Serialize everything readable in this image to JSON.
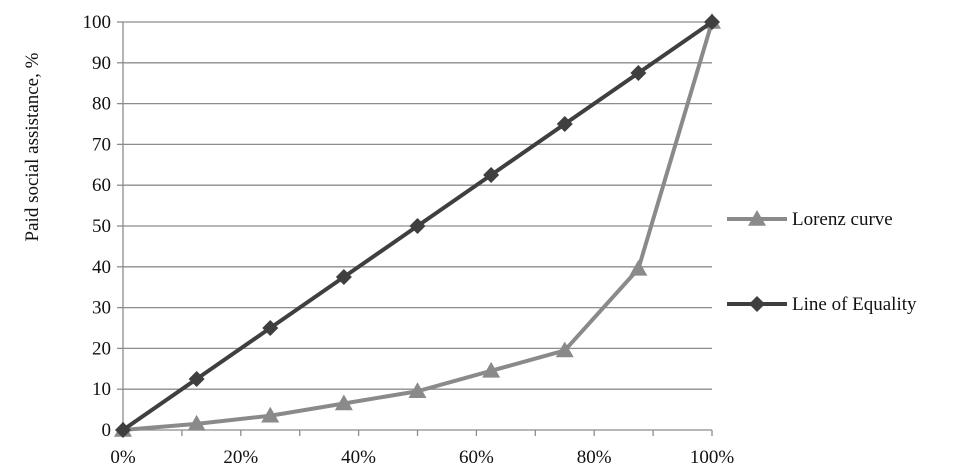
{
  "chart_data": {
    "type": "line",
    "title": "",
    "xlabel": "",
    "ylabel": "Paid social assistance, %",
    "x": [
      0,
      12.5,
      25,
      37.5,
      50,
      62.5,
      75,
      87.5,
      100
    ],
    "xlim": [
      0,
      100
    ],
    "ylim": [
      0,
      100
    ],
    "x_ticks": [
      "0%",
      "20%",
      "40%",
      "60%",
      "80%",
      "100%"
    ],
    "x_tick_values": [
      0,
      20,
      40,
      60,
      80,
      100
    ],
    "y_ticks": [
      "0",
      "10",
      "20",
      "30",
      "40",
      "50",
      "60",
      "70",
      "80",
      "90",
      "100"
    ],
    "y_tick_values": [
      0,
      10,
      20,
      30,
      40,
      50,
      60,
      70,
      80,
      90,
      100
    ],
    "grid": "horizontal",
    "legend_position": "right",
    "series": [
      {
        "name": "Lorenz curve",
        "color": "#8a8a8a",
        "marker": "triangle",
        "values": [
          0,
          1.5,
          3.5,
          6.5,
          9.5,
          14.5,
          19.5,
          39.5,
          100
        ]
      },
      {
        "name": "Line of Equality",
        "color": "#3f3f3f",
        "marker": "diamond",
        "values": [
          0,
          12.5,
          25,
          37.5,
          50,
          62.5,
          75,
          87.5,
          100
        ]
      }
    ]
  }
}
